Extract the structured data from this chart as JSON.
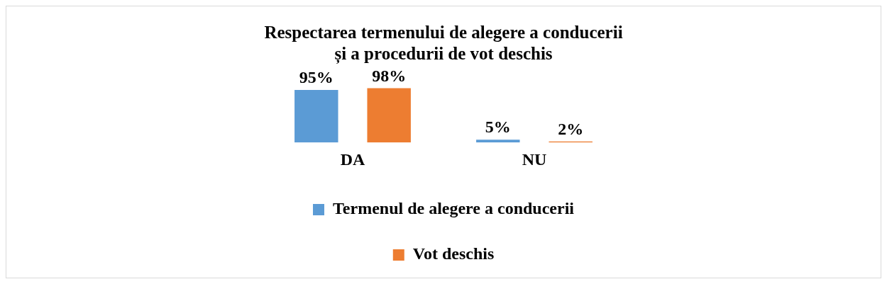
{
  "chart_data": {
    "type": "bar",
    "title": [
      "Respectarea termenului de alegere a conducerii",
      "și a procedurii de vot deschis"
    ],
    "categories": [
      "DA",
      "NU"
    ],
    "series": [
      {
        "name": "Termenul de alegere a conducerii",
        "color": "#5b9bd5",
        "values": [
          95,
          5
        ],
        "value_labels": [
          "95%",
          "5%"
        ]
      },
      {
        "name": "Vot deschis",
        "color": "#ed7d31",
        "values": [
          98,
          2
        ],
        "value_labels": [
          "98%",
          "2%"
        ]
      }
    ],
    "legend": "bottom"
  }
}
